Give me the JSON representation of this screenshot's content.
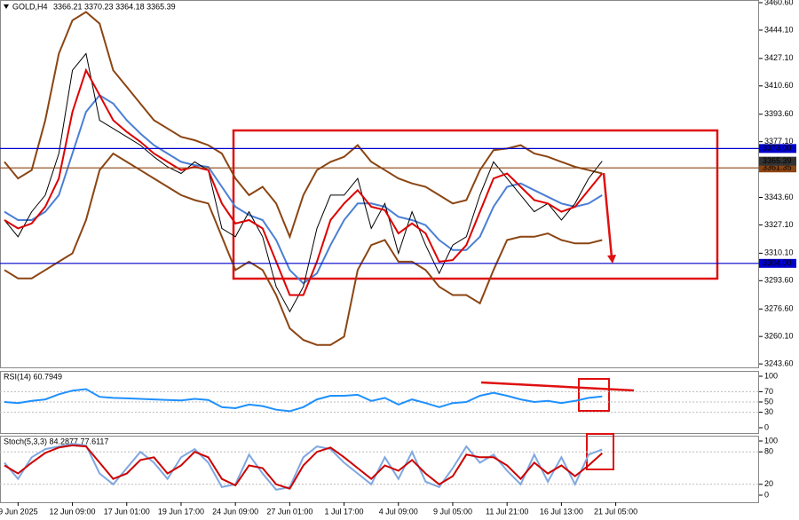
{
  "chart_data": [
    {
      "type": "line",
      "title": "GOLD,H4",
      "subtitle": "3366.21 3370.23 3364.18 3365.39",
      "xlim": [
        -0.33,
        55.55
      ],
      "xticks": [
        {
          "value": 1,
          "label": "9 Jun 2025"
        },
        {
          "value": 5,
          "label": "12 Jun 09:00"
        },
        {
          "value": 9,
          "label": "17 Jun 01:00"
        },
        {
          "value": 13,
          "label": "19 Jun 17:00"
        },
        {
          "value": 17,
          "label": "24 Jun 09:00"
        },
        {
          "value": 21,
          "label": "27 Jun 01:00"
        },
        {
          "value": 25,
          "label": "1 Jul 17:00"
        },
        {
          "value": 29,
          "label": "4 Jul 09:00"
        },
        {
          "value": 33,
          "label": "9 Jul 05:00"
        },
        {
          "value": 37,
          "label": "11 Jul 21:00"
        },
        {
          "value": 41,
          "label": "16 Jul 13:00"
        },
        {
          "value": 45,
          "label": "21 Jul 05:00"
        }
      ],
      "ylim": [
        3241.0,
        3462.2
      ],
      "yticks": [
        {
          "value": 3460.6,
          "label": "3460.60"
        },
        {
          "value": 3444.1,
          "label": "3444.10"
        },
        {
          "value": 3427.1,
          "label": "3427.10"
        },
        {
          "value": 3410.6,
          "label": "3410.60"
        },
        {
          "value": 3393.6,
          "label": "3393.60"
        },
        {
          "value": 3377.1,
          "label": "3377.10"
        },
        {
          "value": 3343.6,
          "label": "3343.60"
        },
        {
          "value": 3327.1,
          "label": "3327.10"
        },
        {
          "value": 3310.1,
          "label": "3310.10"
        },
        {
          "value": 3293.6,
          "label": "3293.60"
        },
        {
          "value": 3276.6,
          "label": "3276.60"
        },
        {
          "value": 3260.1,
          "label": "3260.10"
        },
        {
          "value": 3243.6,
          "label": "3243.60"
        }
      ],
      "levels": [
        {
          "value": 3373,
          "label": "3373.00",
          "color": "#0000cc"
        },
        {
          "value": 3361.35,
          "label": "3361.35",
          "color": "#8b4513"
        },
        {
          "value": 3304,
          "label": "3304.00",
          "color": "#0000cc"
        }
      ],
      "last_price": {
        "value": 3365.39,
        "label": "3365.39"
      },
      "series": [
        {
          "color": "#8b4513",
          "values": [
            3365,
            3355,
            3360,
            3390,
            3430,
            3450,
            3455,
            3448,
            3420,
            3410,
            3400,
            3390,
            3385,
            3380,
            3378,
            3375,
            3370,
            3355,
            3345,
            3350,
            3340,
            3320,
            3345,
            3360,
            3365,
            3368,
            3375,
            3365,
            3360,
            3355,
            3352,
            3350,
            3345,
            3340,
            3342,
            3360,
            3372,
            3373,
            3375,
            3370,
            3368,
            3365,
            3362,
            3360,
            3358
          ]
        },
        {
          "color": "#8b4513",
          "values": [
            3300,
            3295,
            3295,
            3300,
            3305,
            3310,
            3330,
            3360,
            3370,
            3365,
            3360,
            3355,
            3350,
            3345,
            3342,
            3340,
            3320,
            3300,
            3305,
            3300,
            3285,
            3265,
            3258,
            3255,
            3255,
            3260,
            3300,
            3315,
            3318,
            3305,
            3305,
            3300,
            3290,
            3285,
            3285,
            3280,
            3300,
            3318,
            3320,
            3320,
            3322,
            3318,
            3316,
            3316,
            3318
          ]
        },
        {
          "color": "#4a7fd4",
          "values": [
            3335,
            3330,
            3330,
            3335,
            3345,
            3370,
            3395,
            3405,
            3400,
            3390,
            3382,
            3375,
            3370,
            3365,
            3363,
            3362,
            3350,
            3338,
            3333,
            3330,
            3318,
            3300,
            3292,
            3298,
            3315,
            3330,
            3340,
            3340,
            3338,
            3332,
            3330,
            3327,
            3318,
            3312,
            3312,
            3320,
            3338,
            3350,
            3352,
            3348,
            3344,
            3340,
            3338,
            3340,
            3345
          ]
        },
        {
          "color": "#000000",
          "values": [
            3330,
            3320,
            3335,
            3345,
            3370,
            3420,
            3430,
            3390,
            3385,
            3380,
            3375,
            3368,
            3362,
            3358,
            3365,
            3360,
            3325,
            3320,
            3335,
            3320,
            3290,
            3275,
            3290,
            3325,
            3345,
            3345,
            3355,
            3325,
            3340,
            3310,
            3335,
            3315,
            3298,
            3315,
            3320,
            3345,
            3365,
            3355,
            3345,
            3335,
            3340,
            3330,
            3340,
            3355,
            3365.39
          ]
        },
        {
          "color": "#dd0000",
          "values": [
            3330,
            3325,
            3328,
            3338,
            3355,
            3395,
            3420,
            3405,
            3390,
            3383,
            3377,
            3370,
            3365,
            3360,
            3362,
            3360,
            3340,
            3328,
            3330,
            3325,
            3305,
            3285,
            3285,
            3305,
            3330,
            3340,
            3348,
            3338,
            3336,
            3322,
            3328,
            3322,
            3305,
            3306,
            3315,
            3335,
            3355,
            3358,
            3350,
            3342,
            3340,
            3335,
            3338,
            3348,
            3358
          ]
        }
      ]
    },
    {
      "type": "line",
      "title": "RSI(14) 60.7949",
      "ylim": [
        0,
        100
      ],
      "yticks": [
        100,
        70,
        50,
        30,
        0
      ],
      "series": [
        {
          "color": "#1e90ff",
          "values": [
            50,
            48,
            52,
            55,
            65,
            72,
            75,
            60,
            58,
            57,
            56,
            55,
            54,
            53,
            56,
            54,
            40,
            38,
            45,
            42,
            35,
            32,
            40,
            55,
            62,
            62,
            64,
            52,
            58,
            45,
            55,
            48,
            40,
            48,
            50,
            62,
            68,
            62,
            55,
            50,
            52,
            48,
            52,
            58,
            60.79
          ]
        }
      ]
    },
    {
      "type": "line",
      "title": "Stoch(5,3,3) 84.2877 77.6117",
      "ylim": [
        0,
        100
      ],
      "yticks": [
        100,
        80,
        20,
        0
      ],
      "series": [
        {
          "color": "#7fa7e0",
          "values": [
            60,
            30,
            70,
            85,
            90,
            95,
            92,
            40,
            20,
            50,
            80,
            60,
            30,
            70,
            85,
            60,
            15,
            20,
            75,
            40,
            10,
            15,
            70,
            90,
            85,
            60,
            40,
            20,
            70,
            30,
            80,
            25,
            15,
            50,
            90,
            60,
            75,
            45,
            20,
            75,
            25,
            70,
            20,
            75,
            84.29
          ]
        },
        {
          "color": "#cc0000",
          "values": [
            55,
            40,
            60,
            78,
            88,
            92,
            90,
            60,
            30,
            40,
            65,
            70,
            40,
            55,
            80,
            70,
            30,
            18,
            55,
            50,
            20,
            12,
            55,
            80,
            88,
            70,
            50,
            30,
            55,
            45,
            65,
            40,
            20,
            35,
            75,
            70,
            70,
            55,
            30,
            60,
            40,
            55,
            35,
            55,
            77.61
          ]
        }
      ]
    }
  ]
}
